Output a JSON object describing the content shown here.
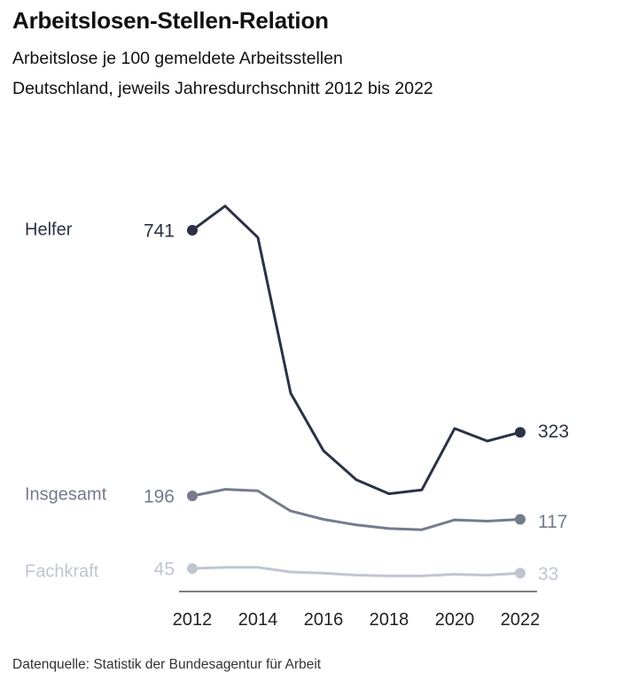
{
  "header": {
    "title": "Arbeitslosen-Stellen-Relation",
    "subtitle_line1": "Arbeitslose je 100 gemeldete Arbeitsstellen",
    "subtitle_line2": "Deutschland, jeweils Jahresdurchschnitt 2012 bis 2022"
  },
  "footer": {
    "source": "Datenquelle: Statistik der Bundesagentur für Arbeit"
  },
  "chart_data": {
    "type": "line",
    "title": "Arbeitslosen-Stellen-Relation",
    "subtitle": "Arbeitslose je 100 gemeldete Arbeitsstellen",
    "xlabel": "",
    "ylabel": "",
    "x": [
      2012,
      2013,
      2014,
      2015,
      2016,
      2017,
      2018,
      2019,
      2020,
      2021,
      2022
    ],
    "xticks": [
      "2012",
      "2014",
      "2016",
      "2018",
      "2020",
      "2022"
    ],
    "xlim": [
      2012,
      2022
    ],
    "grid": false,
    "legend": "direct labels left of lines",
    "series": [
      {
        "name": "Helfer",
        "color": "#2b3245",
        "values": [
          741,
          791,
          726,
          404,
          285,
          225,
          196,
          204,
          331,
          305,
          323
        ],
        "start_label": "741",
        "end_label": "323"
      },
      {
        "name": "Insgesamt",
        "color": "#757b8d",
        "values": [
          196,
          218,
          213,
          145,
          117,
          98,
          86,
          82,
          115,
          111,
          117
        ],
        "start_label": "196",
        "end_label": "117"
      },
      {
        "name": "Fachkraft",
        "color": "#c0c5d1",
        "values": [
          45,
          48,
          48,
          36,
          33,
          28,
          26,
          26,
          30,
          28,
          33
        ],
        "start_label": "45",
        "end_label": "33"
      }
    ]
  }
}
